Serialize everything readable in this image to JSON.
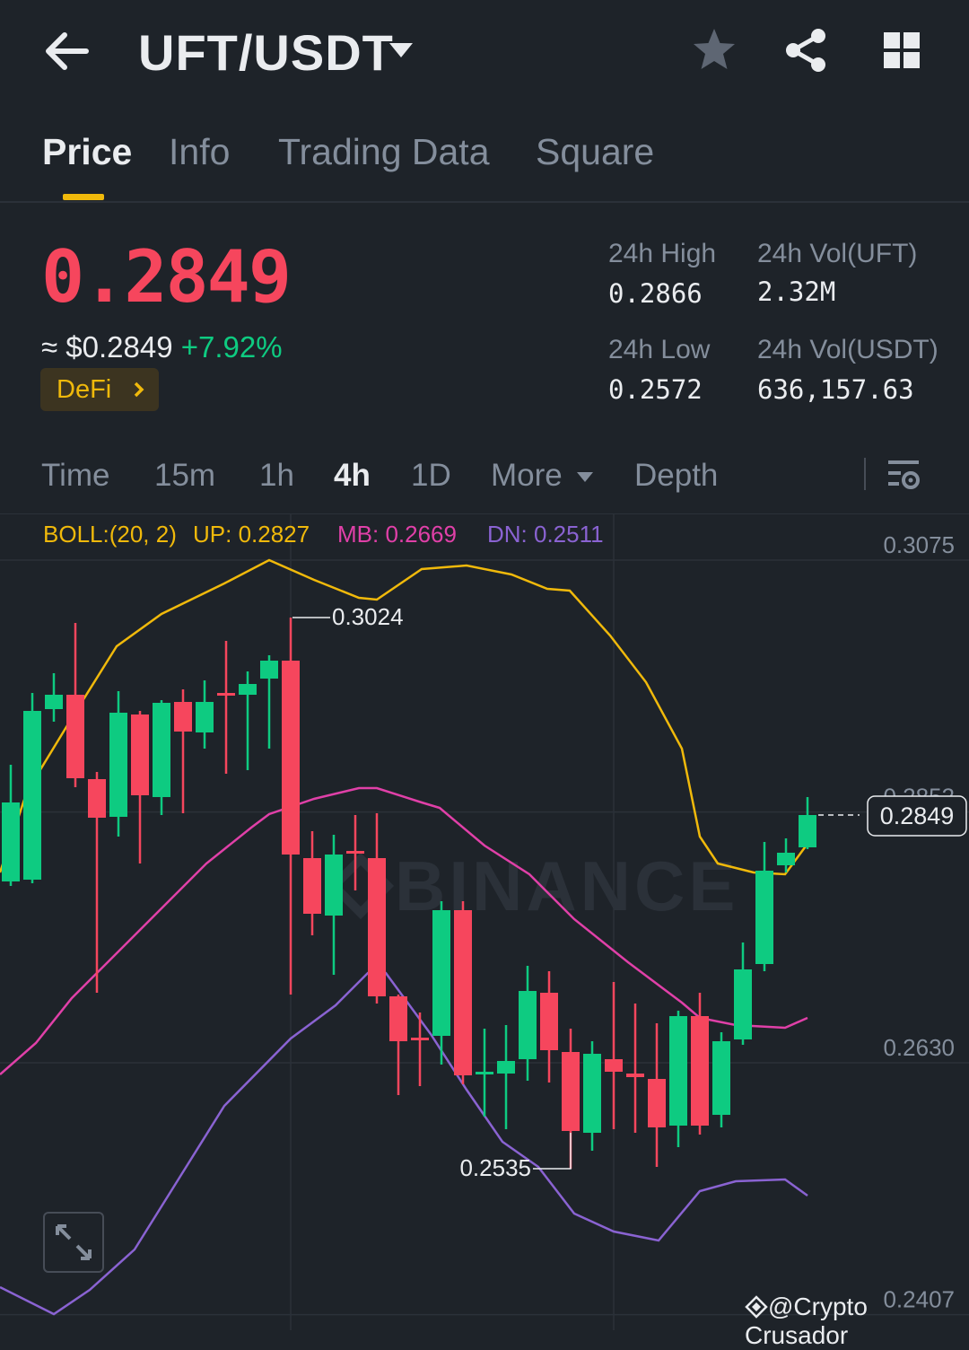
{
  "header": {
    "pair": "UFT/USDT",
    "icons": [
      "back-arrow-icon",
      "dropdown-caret-icon",
      "star-icon",
      "share-icon",
      "grid-icon"
    ]
  },
  "tabs": [
    {
      "label": "Price",
      "active": true
    },
    {
      "label": "Info",
      "active": false
    },
    {
      "label": "Trading Data",
      "active": false
    },
    {
      "label": "Square",
      "active": false
    }
  ],
  "ticker": {
    "last_price": "0.2849",
    "usd_price": "≈ $0.2849",
    "change": "+7.92%",
    "tag": "DeFi",
    "high_label": "24h High",
    "high_value": "0.2866",
    "low_label": "24h Low",
    "low_value": "0.2572",
    "vol_base_label": "24h Vol(UFT)",
    "vol_base_value": "2.32M",
    "vol_quote_label": "24h Vol(USDT)",
    "vol_quote_value": "636,157.63"
  },
  "timeframes": {
    "items": [
      "Time",
      "15m",
      "1h",
      "4h",
      "1D",
      "More",
      "Depth"
    ],
    "active": "4h"
  },
  "indicator": {
    "boll": "BOLL:(20, 2)",
    "up": "UP: 0.2827",
    "mb": "MB: 0.2669",
    "dn": "DN: 0.2511"
  },
  "colors": {
    "up": "#0ecb81",
    "down": "#f6465d",
    "boll_up": "#f0b90b",
    "boll_mb": "#e040a8",
    "boll_dn": "#8a63d2",
    "background": "#1e2329"
  },
  "chart_data": {
    "type": "candlestick",
    "y_ticks": [
      "0.3075",
      "0.2852",
      "0.2630",
      "0.2407"
    ],
    "current_price_label": "0.2849",
    "max_label": "0.3024",
    "min_label": "0.2535",
    "watermark_text": "BINANCE",
    "ylim": [
      0.2395,
      0.3099
    ]
  },
  "footer": {
    "credit": "@Crypto Crusador"
  }
}
